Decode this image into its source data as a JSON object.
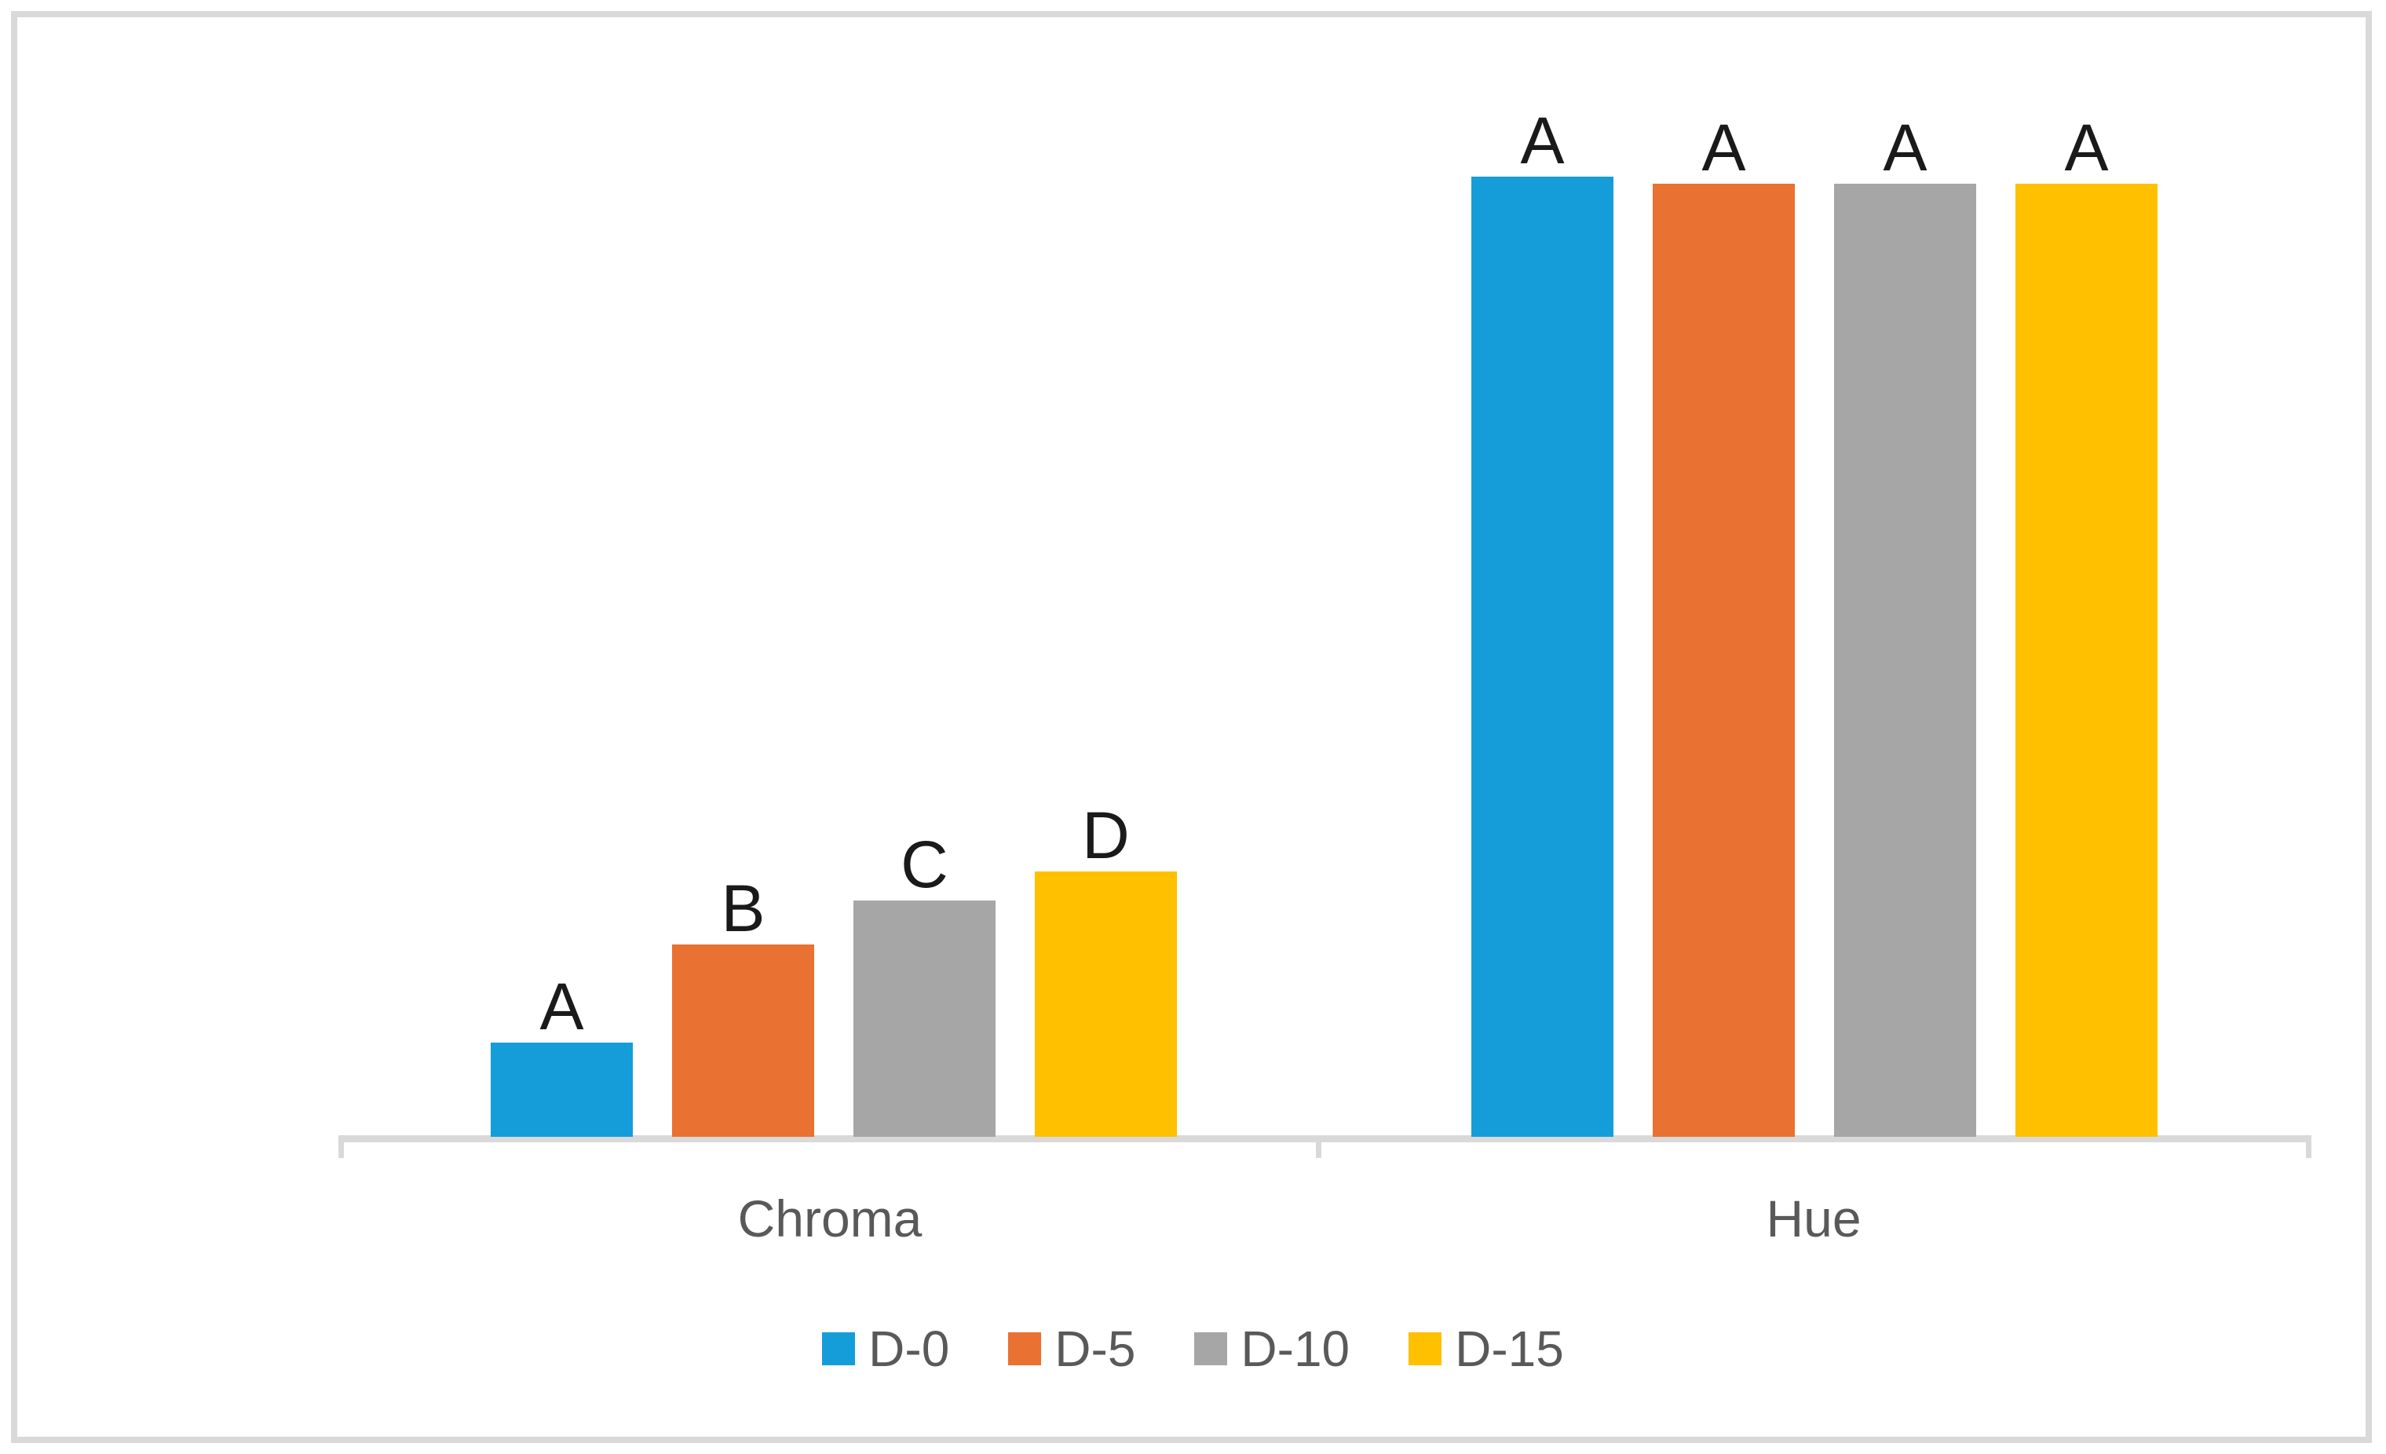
{
  "chart_data": {
    "type": "bar",
    "title": "",
    "categories": [
      "Chroma",
      "Hue"
    ],
    "series": [
      {
        "name": "D-0",
        "color": "#149DD9",
        "values": [
          9.8,
          100.0
        ],
        "labels": [
          "A",
          "A"
        ]
      },
      {
        "name": "D-5",
        "color": "#E97132",
        "values": [
          20.0,
          99.3
        ],
        "labels": [
          "B",
          "A"
        ]
      },
      {
        "name": "D-10",
        "color": "#A6A6A6",
        "values": [
          24.6,
          99.3
        ],
        "labels": [
          "C",
          "A"
        ]
      },
      {
        "name": "D-15",
        "color": "#FFC000",
        "values": [
          27.6,
          99.3
        ],
        "labels": [
          "D",
          "A"
        ]
      }
    ],
    "xlabel": "",
    "ylabel": "",
    "ylim": [
      0,
      117
    ],
    "grid": false,
    "value_axis_visible": false,
    "legend_position": "bottom",
    "significance_labels": {
      "Chroma": [
        "A",
        "B",
        "C",
        "D"
      ],
      "Hue": [
        "A",
        "A",
        "A",
        "A"
      ]
    }
  },
  "style": {
    "axis_color": "#D9D9D9",
    "border_color": "#D9D9D9",
    "background": "#FFFFFF",
    "category_label_color": "#595959",
    "legend_label_color": "#595959",
    "data_label_color": "#1A1A1A"
  }
}
